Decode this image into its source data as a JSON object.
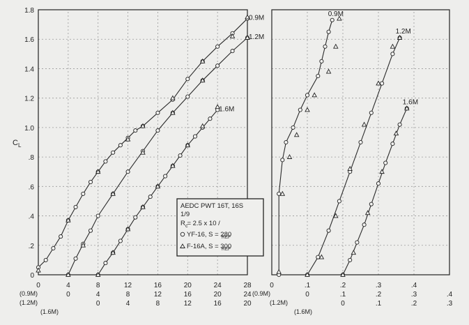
{
  "chart_data": [
    {
      "type": "line",
      "panel": "alpha",
      "ylabel": "CL",
      "ylim": [
        0,
        1.8
      ],
      "y_ticks": [
        "0",
        ".2",
        ".4",
        ".6",
        ".8",
        "1.0",
        "1.2",
        "1.4",
        "1.6",
        "1.8"
      ],
      "xlim": [
        0,
        28
      ],
      "x_tick_rows": [
        {
          "labels": [
            "0",
            "4",
            "8",
            "12",
            "16",
            "20",
            "24",
            "28"
          ],
          "tag": "(0.9M)"
        },
        {
          "labels": [
            "0",
            "4",
            "8",
            "12",
            "16",
            "20",
            "24"
          ],
          "tag": "(1.2M)"
        },
        {
          "labels": [
            "0",
            "4",
            "8",
            "12",
            "16",
            "20"
          ],
          "tag": "(1.6M)"
        }
      ],
      "series": [
        {
          "name": "0.9M",
          "offset": 0,
          "yf16": [
            [
              0,
              0.05
            ],
            [
              1,
              0.1
            ],
            [
              2,
              0.18
            ],
            [
              3,
              0.26
            ],
            [
              4,
              0.37
            ],
            [
              5,
              0.46
            ],
            [
              6,
              0.55
            ],
            [
              7,
              0.63
            ],
            [
              8,
              0.7
            ],
            [
              9,
              0.77
            ],
            [
              10,
              0.83
            ],
            [
              11,
              0.88
            ],
            [
              12,
              0.93
            ],
            [
              13,
              0.98
            ],
            [
              14,
              1.01
            ],
            [
              16,
              1.1
            ],
            [
              18,
              1.19
            ],
            [
              20,
              1.33
            ],
            [
              22,
              1.45
            ],
            [
              24,
              1.55
            ],
            [
              26,
              1.64
            ],
            [
              28,
              1.74
            ]
          ],
          "f16a": [
            [
              0,
              0.03
            ],
            [
              4,
              0.37
            ],
            [
              8,
              0.7
            ],
            [
              12,
              0.92
            ],
            [
              14,
              1.01
            ],
            [
              18,
              1.2
            ],
            [
              22,
              1.45
            ],
            [
              26,
              1.62
            ],
            [
              28,
              1.75
            ]
          ]
        },
        {
          "name": "1.2M",
          "offset": 4,
          "yf16": [
            [
              0,
              0.0
            ],
            [
              1,
              0.11
            ],
            [
              2,
              0.21
            ],
            [
              3,
              0.3
            ],
            [
              4,
              0.4
            ],
            [
              6,
              0.55
            ],
            [
              8,
              0.7
            ],
            [
              10,
              0.84
            ],
            [
              12,
              0.98
            ],
            [
              14,
              1.1
            ],
            [
              16,
              1.21
            ],
            [
              18,
              1.32
            ],
            [
              20,
              1.42
            ],
            [
              22,
              1.52
            ],
            [
              24,
              1.61
            ]
          ],
          "f16a": [
            [
              0,
              0.0
            ],
            [
              2,
              0.2
            ],
            [
              6,
              0.55
            ],
            [
              10,
              0.83
            ],
            [
              14,
              1.1
            ],
            [
              18,
              1.32
            ],
            [
              24,
              1.61
            ]
          ]
        },
        {
          "name": "1.6M",
          "offset": 8,
          "yf16": [
            [
              0,
              0.0
            ],
            [
              1,
              0.08
            ],
            [
              2,
              0.15
            ],
            [
              3,
              0.23
            ],
            [
              4,
              0.31
            ],
            [
              5,
              0.39
            ],
            [
              6,
              0.46
            ],
            [
              7,
              0.53
            ],
            [
              8,
              0.6
            ],
            [
              9,
              0.67
            ],
            [
              10,
              0.74
            ],
            [
              11,
              0.81
            ],
            [
              12,
              0.88
            ],
            [
              13,
              0.94
            ],
            [
              14,
              1.0
            ],
            [
              15,
              1.06
            ],
            [
              16,
              1.12
            ]
          ],
          "f16a": [
            [
              0,
              0.0
            ],
            [
              2,
              0.15
            ],
            [
              4,
              0.31
            ],
            [
              6,
              0.46
            ],
            [
              8,
              0.6
            ],
            [
              10,
              0.74
            ],
            [
              12,
              0.88
            ],
            [
              14,
              1.01
            ],
            [
              16,
              1.14
            ]
          ]
        }
      ]
    },
    {
      "type": "line",
      "panel": "drag",
      "ylim": [
        0,
        1.8
      ],
      "xlim": [
        0,
        0.5
      ],
      "x_tick_rows": [
        {
          "labels": [
            "0",
            ".1",
            ".2",
            ".3",
            ".4"
          ],
          "tag": "(0.9M)"
        },
        {
          "labels": [
            "0",
            ".1",
            ".2",
            ".3",
            ".4"
          ],
          "tag": "(1.2M)"
        },
        {
          "labels": [
            "0",
            ".1",
            ".2",
            ".3",
            ".4"
          ],
          "tag": "(1.6M)"
        }
      ],
      "series": [
        {
          "name": "0.9M",
          "offset": 0,
          "yf16": [
            [
              0.02,
              0.0
            ],
            [
              0.02,
              0.55
            ],
            [
              0.03,
              0.78
            ],
            [
              0.04,
              0.9
            ],
            [
              0.06,
              1.0
            ],
            [
              0.08,
              1.12
            ],
            [
              0.1,
              1.22
            ],
            [
              0.13,
              1.35
            ],
            [
              0.14,
              1.45
            ],
            [
              0.15,
              1.55
            ],
            [
              0.16,
              1.65
            ],
            [
              0.17,
              1.73
            ]
          ],
          "f16a": [
            [
              0.02,
              0.02
            ],
            [
              0.03,
              0.55
            ],
            [
              0.05,
              0.8
            ],
            [
              0.07,
              0.95
            ],
            [
              0.1,
              1.12
            ],
            [
              0.12,
              1.22
            ],
            [
              0.16,
              1.38
            ],
            [
              0.18,
              1.55
            ],
            [
              0.19,
              1.74
            ]
          ]
        },
        {
          "name": "1.2M",
          "offset": 0.1,
          "yf16": [
            [
              0.0,
              0.0
            ],
            [
              0.03,
              0.12
            ],
            [
              0.06,
              0.3
            ],
            [
              0.09,
              0.5
            ],
            [
              0.12,
              0.7
            ],
            [
              0.15,
              0.9
            ],
            [
              0.18,
              1.1
            ],
            [
              0.21,
              1.3
            ],
            [
              0.24,
              1.5
            ],
            [
              0.26,
              1.61
            ]
          ],
          "f16a": [
            [
              0.0,
              0.0
            ],
            [
              0.04,
              0.12
            ],
            [
              0.08,
              0.4
            ],
            [
              0.12,
              0.72
            ],
            [
              0.16,
              1.02
            ],
            [
              0.2,
              1.3
            ],
            [
              0.24,
              1.55
            ],
            [
              0.26,
              1.61
            ]
          ]
        },
        {
          "name": "1.6M",
          "offset": 0.2,
          "yf16": [
            [
              0.0,
              0.0
            ],
            [
              0.02,
              0.1
            ],
            [
              0.04,
              0.22
            ],
            [
              0.06,
              0.34
            ],
            [
              0.08,
              0.48
            ],
            [
              0.1,
              0.62
            ],
            [
              0.12,
              0.76
            ],
            [
              0.14,
              0.89
            ],
            [
              0.16,
              1.02
            ],
            [
              0.18,
              1.13
            ]
          ],
          "f16a": [
            [
              0.0,
              0.0
            ],
            [
              0.03,
              0.15
            ],
            [
              0.07,
              0.42
            ],
            [
              0.11,
              0.7
            ],
            [
              0.15,
              0.96
            ],
            [
              0.18,
              1.13
            ]
          ]
        }
      ]
    }
  ],
  "legend": {
    "line1": "AEDC PWT 16T, 16S",
    "line2": "1/9",
    "line3": "R  = 2.5 x 10  /",
    "line4": "YF-16, S     = 280",
    "line5": "F-16A, S     = 300",
    "ref": "REF",
    "sub_r": "c"
  }
}
